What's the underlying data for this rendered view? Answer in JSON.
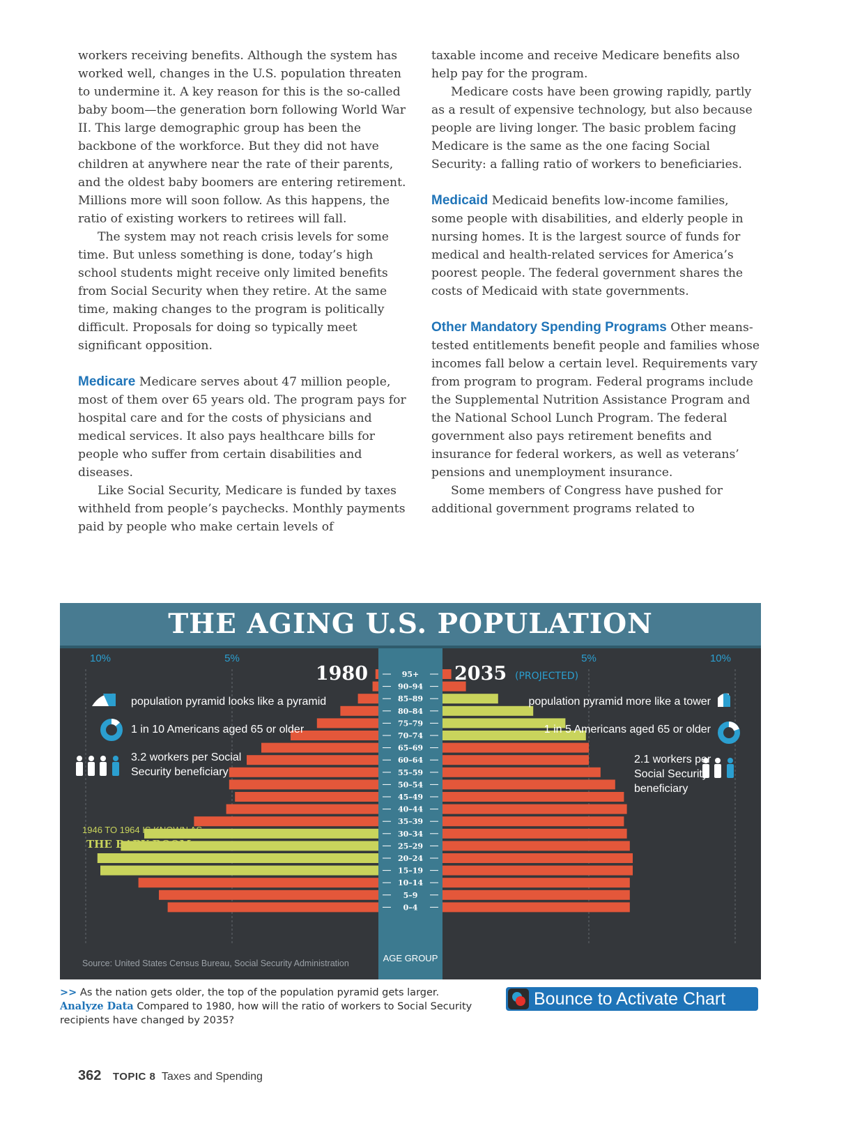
{
  "text": {
    "left": [
      "workers receiving benefits. Although the system has worked well, changes in the U.S. population threaten to undermine it. A key reason for this is the so-called baby boom—the generation born following World War II. This large demographic group has been the backbone of the workforce. But they did not have children at anywhere near the rate of their parents, and the oldest baby boomers are entering retirement. Millions more will soon follow. As this happens, the ratio of existing workers to retirees will fall.",
      "The system may not reach crisis levels for some time. But unless something is done, today’s high school students might receive only limited benefits from Social Security when they retire. At the same time, making changes to the program is politically difficult. Proposals for doing so typically meet significant opposition."
    ],
    "medicare_heading": "Medicare",
    "medicare_p1": "Medicare serves about 47 million people, most of them over 65 years old. The program pays for hospital care and for the costs of physicians and medical services. It also pays healthcare bills for people who suffer from certain disabilities and diseases.",
    "medicare_p2": "Like Social Security, Medicare is funded by taxes withheld from people’s paychecks. Monthly payments paid by people who make certain levels of",
    "right": [
      "taxable income and receive Medicare benefits also help pay for the program.",
      "Medicare costs have been growing rapidly, partly as a result of expensive technology, but also because people are living longer. The basic problem facing Medicare is the same as the one facing Social Security: a falling ratio of workers to beneficiaries."
    ],
    "medicaid_heading": "Medicaid",
    "medicaid_p": "Medicaid benefits low-income families, some people with disabilities, and elderly people in nursing homes. It is the largest source of funds for medical and health-related services for America’s poorest people. The federal government shares the costs of Medicaid with state governments.",
    "other_heading": "Other Mandatory Spending Programs",
    "other_p1": "Other means-tested entitlements benefit people and families whose incomes fall below a certain level. Requirements vary from program to program. Federal programs include the Supplemental Nutrition Assistance Program and the National School Lunch Program. The federal government also pays retirement benefits and insurance for federal workers, as well as veterans’ pensions and unemployment insurance.",
    "other_p2": "Some members of Congress have pushed for additional government programs related to"
  },
  "infographic": {
    "title": "THE AGING U.S. POPULATION",
    "left_year": "1980",
    "right_year": "2035",
    "right_note": "(PROJECTED)",
    "left_facts": [
      "population pyramid looks like a pyramid",
      "1 in 10 Americans aged 65 or older",
      "3.2 workers per Social",
      "Security beneficiary"
    ],
    "right_facts": [
      "population pyramid more like a tower",
      "1 in 5 Americans aged 65 or older",
      "2.1 workers per",
      "Social Security",
      "beneficiary"
    ],
    "baby_boom_line1": "1946 TO 1964 IS KNOWN AS",
    "baby_boom_line2": "THE BABY BOOM.",
    "source": "Source: United States Census Bureau, Social Security Administration",
    "age_group_label": "AGE GROUP",
    "colors": {
      "bar": "#e4573a",
      "boomer": "#c9d45c",
      "spine": "#3c7a90",
      "background": "#34373b",
      "title_bar": "#487b91",
      "accent_text": "#2b9fd0",
      "boom_text": "#c9d45c"
    }
  },
  "chart_data": {
    "type": "bar",
    "title": "THE AGING U.S. POPULATION",
    "xlabel": "",
    "ylabel": "AGE GROUP",
    "x_ticks": [
      "10%",
      "5%",
      "5%",
      "10%"
    ],
    "xlim": [
      0,
      10
    ],
    "categories": [
      "95+",
      "90–94",
      "85–89",
      "80–84",
      "75–79",
      "70–74",
      "65–69",
      "60–64",
      "55–59",
      "50–54",
      "45–49",
      "40–44",
      "35–39",
      "30–34",
      "25–29",
      "20–24",
      "15–19",
      "10–14",
      "5–9",
      "0–4"
    ],
    "series": [
      {
        "name": "1980",
        "side": "left",
        "values": [
          0.1,
          0.2,
          0.7,
          1.3,
          2.1,
          3.0,
          4.0,
          4.5,
          5.1,
          5.1,
          4.9,
          5.2,
          6.3,
          8.0,
          8.8,
          9.6,
          9.5,
          8.2,
          7.5,
          7.2
        ],
        "boomer": [
          false,
          false,
          false,
          false,
          false,
          false,
          false,
          false,
          false,
          false,
          false,
          false,
          false,
          true,
          true,
          true,
          true,
          false,
          false,
          false
        ]
      },
      {
        "name": "2035",
        "side": "right",
        "values": [
          0.3,
          0.8,
          1.9,
          3.1,
          4.2,
          4.9,
          5.0,
          5.0,
          5.4,
          5.9,
          6.2,
          6.3,
          6.2,
          6.3,
          6.4,
          6.5,
          6.5,
          6.4,
          6.4,
          6.4
        ],
        "boomer": [
          false,
          false,
          true,
          true,
          true,
          true,
          false,
          false,
          false,
          false,
          false,
          false,
          false,
          false,
          false,
          false,
          false,
          false,
          false,
          false
        ]
      }
    ]
  },
  "caption": {
    "arrow": ">>",
    "text1": "As the nation gets older, the top of the population pyramid gets larger.",
    "analyze": "Analyze Data",
    "text2": "Compared to 1980, how will the ratio of workers to Social Security recipients have changed by 2035?"
  },
  "bounce_button": {
    "label": "Bounce to Activate Chart"
  },
  "footer": {
    "page": "362",
    "topic_tag": "TOPIC 8",
    "topic_title": "Taxes and Spending"
  }
}
